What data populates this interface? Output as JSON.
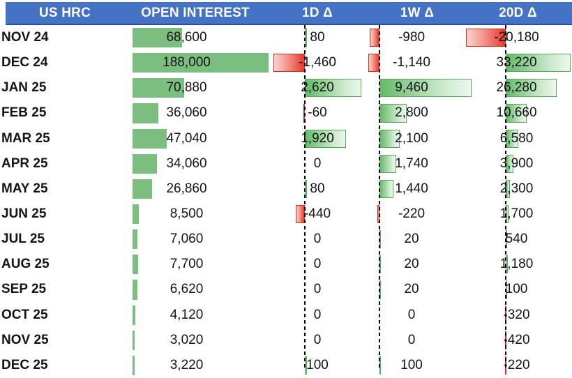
{
  "table": {
    "columns": [
      "US HRC",
      "OPEN INTEREST",
      "1D Δ",
      "1W Δ",
      "20D Δ"
    ],
    "rows": [
      {
        "contract": "NOV 24",
        "open_interest": 68600,
        "delta_1d": 80,
        "delta_1w": -980,
        "delta_20d": -20180
      },
      {
        "contract": "DEC 24",
        "open_interest": 188000,
        "delta_1d": -1460,
        "delta_1w": -1140,
        "delta_20d": 33220
      },
      {
        "contract": "JAN 25",
        "open_interest": 70880,
        "delta_1d": 2620,
        "delta_1w": 9460,
        "delta_20d": 26280
      },
      {
        "contract": "FEB 25",
        "open_interest": 36060,
        "delta_1d": -60,
        "delta_1w": 2800,
        "delta_20d": 10660
      },
      {
        "contract": "MAR 25",
        "open_interest": 47040,
        "delta_1d": 1920,
        "delta_1w": 2100,
        "delta_20d": 6580
      },
      {
        "contract": "APR 25",
        "open_interest": 34060,
        "delta_1d": 0,
        "delta_1w": 1740,
        "delta_20d": 3900
      },
      {
        "contract": "MAY 25",
        "open_interest": 26860,
        "delta_1d": 80,
        "delta_1w": 1440,
        "delta_20d": 2300
      },
      {
        "contract": "JUN 25",
        "open_interest": 8500,
        "delta_1d": -440,
        "delta_1w": -220,
        "delta_20d": 1700
      },
      {
        "contract": "JUL 25",
        "open_interest": 7060,
        "delta_1d": 0,
        "delta_1w": 20,
        "delta_20d": 540
      },
      {
        "contract": "AUG 25",
        "open_interest": 7700,
        "delta_1d": 0,
        "delta_1w": 20,
        "delta_20d": 1180
      },
      {
        "contract": "SEP 25",
        "open_interest": 6620,
        "delta_1d": 0,
        "delta_1w": 20,
        "delta_20d": 100
      },
      {
        "contract": "OCT 25",
        "open_interest": 4120,
        "delta_1d": 0,
        "delta_1w": 0,
        "delta_20d": -320
      },
      {
        "contract": "NOV 25",
        "open_interest": 3020,
        "delta_1d": 0,
        "delta_1w": 0,
        "delta_20d": -420
      },
      {
        "contract": "DEC 25",
        "open_interest": 3220,
        "delta_1d": 100,
        "delta_1w": 100,
        "delta_20d": -220
      }
    ]
  },
  "colors": {
    "header_bg": "#4472C4",
    "header_border": "#2A4F9E",
    "header_text": "#FFFFFF",
    "open_interest_bar": "#7CBE80",
    "positive_bar_border": "#58A75C",
    "positive_bar_fill_start": "#64BB68",
    "positive_bar_fill_end": "#EDF8ED",
    "negative_bar_border": "#D92A1D",
    "negative_bar_fill_start": "#E8372A",
    "negative_bar_fill_end": "#F7D4D0",
    "axis_line": "#000000",
    "text": "#141414"
  }
}
